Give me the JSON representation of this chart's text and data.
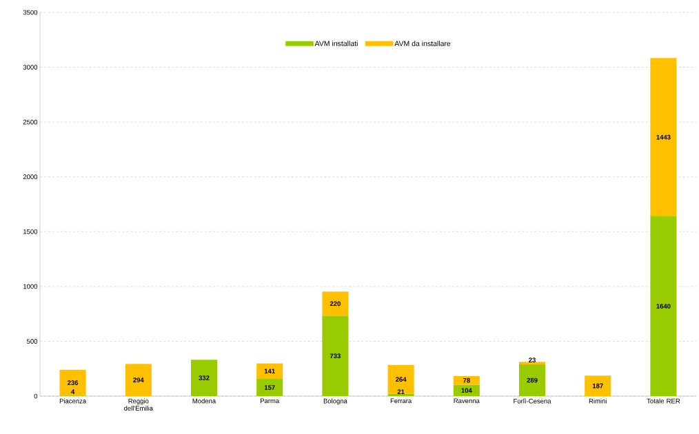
{
  "chart_data": {
    "type": "bar",
    "stacked": true,
    "categories": [
      "Piacenza",
      "Reggio dell'Emilia",
      "Modena",
      "Parma",
      "Bologna",
      "Ferrara",
      "Ravenna",
      "Forlì-Cesena",
      "Rimini",
      "Totale RER"
    ],
    "series": [
      {
        "name": "AVM installati",
        "color": "#99cc00",
        "values": [
          4,
          null,
          332,
          157,
          733,
          21,
          104,
          289,
          null,
          1640
        ]
      },
      {
        "name": "AVM da installare",
        "color": "#ffc000",
        "values": [
          236,
          294,
          null,
          141,
          220,
          264,
          78,
          23,
          187,
          1443
        ]
      }
    ],
    "ylim": [
      0,
      3500
    ],
    "yticks": [
      0,
      500,
      1000,
      1500,
      2000,
      2500,
      3000,
      3500
    ],
    "grid": "y",
    "legend": "top",
    "data_labels": true
  }
}
